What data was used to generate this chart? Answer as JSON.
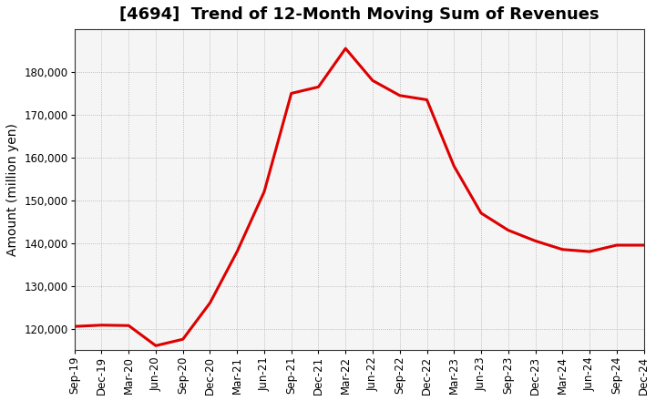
{
  "title": "[4694]  Trend of 12-Month Moving Sum of Revenues",
  "ylabel": "Amount (million yen)",
  "line_color": "#dd0000",
  "background_color": "#ffffff",
  "plot_background": "#f5f5f5",
  "grid_color": "#999999",
  "tick_labels": [
    "Sep-19",
    "Dec-19",
    "Mar-20",
    "Jun-20",
    "Sep-20",
    "Dec-20",
    "Mar-21",
    "Jun-21",
    "Sep-21",
    "Dec-21",
    "Mar-22",
    "Jun-22",
    "Sep-22",
    "Dec-22",
    "Mar-23",
    "Jun-23",
    "Sep-23",
    "Dec-23",
    "Mar-24",
    "Jun-24",
    "Sep-24",
    "Dec-24"
  ],
  "values": [
    120500,
    120800,
    120700,
    116000,
    117500,
    126000,
    138000,
    152000,
    175000,
    176500,
    185500,
    178000,
    174500,
    173500,
    158000,
    147000,
    143000,
    140500,
    138500,
    138000,
    139500,
    139500
  ],
  "ylim_min": 115000,
  "ylim_max": 190000,
  "yticks": [
    120000,
    130000,
    140000,
    150000,
    160000,
    170000,
    180000
  ],
  "title_fontsize": 13,
  "axis_label_fontsize": 10,
  "tick_fontsize": 8.5
}
